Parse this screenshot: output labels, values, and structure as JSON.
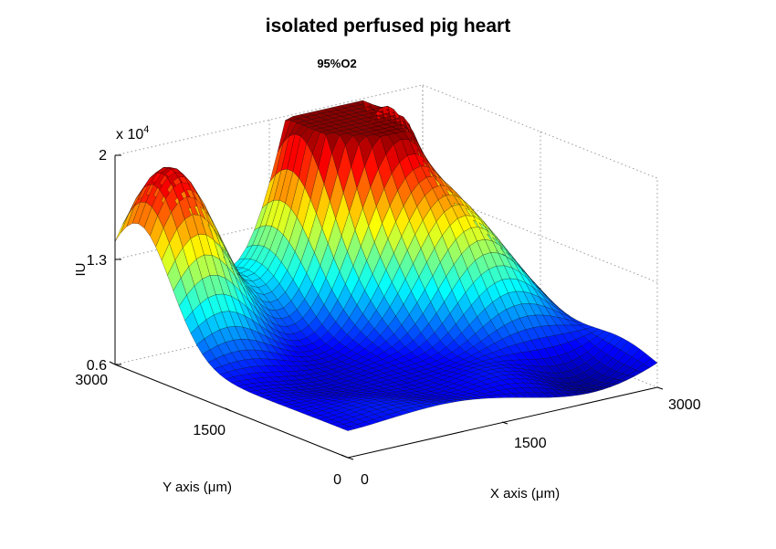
{
  "chart_data": {
    "type": "surface",
    "title": "isolated perfused pig heart",
    "subtitle": "95%O2",
    "xlabel": "X axis (μm)",
    "ylabel": "Y axis (μm)",
    "zlabel": "IU",
    "z_multiplier": "x 10",
    "z_multiplier_exp": "4",
    "x_ticks": [
      "0",
      "1500",
      "3000"
    ],
    "y_ticks": [
      "0",
      "1500",
      "3000"
    ],
    "z_ticks": [
      "0.6",
      "1.3",
      "2"
    ],
    "xlim": [
      0,
      3000
    ],
    "ylim": [
      0,
      3000
    ],
    "zlim": [
      6000,
      20000
    ],
    "colormap": "jet",
    "grid": true,
    "peaks": [
      {
        "x": 300,
        "y": 2700,
        "z": 19500
      },
      {
        "x": 1900,
        "y": 2700,
        "z": 18500
      },
      {
        "x": 2100,
        "y": 2850,
        "z": 18900
      },
      {
        "x": 2300,
        "y": 1800,
        "z": 14300
      }
    ]
  }
}
